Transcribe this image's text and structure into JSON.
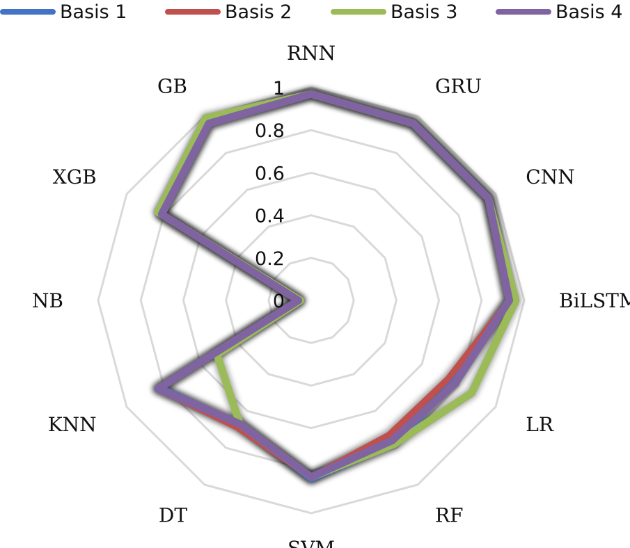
{
  "chart_data": {
    "type": "radar",
    "title": "",
    "categories": [
      "RNN",
      "GRU",
      "CNN",
      "BiLSTM",
      "LR",
      "RF",
      "SVM",
      "DT",
      "KNN",
      "NB",
      "XGB",
      "GB"
    ],
    "rlim": [
      0,
      1
    ],
    "ticks": [
      "0",
      "0.2",
      "0.4",
      "0.6",
      "0.8",
      "1"
    ],
    "grid": true,
    "legend_position": "top",
    "series": [
      {
        "name": "Basis 1",
        "color": "#4472C4",
        "values": [
          0.97,
          0.96,
          0.96,
          0.93,
          0.77,
          0.78,
          0.84,
          0.67,
          0.82,
          0.06,
          0.81,
          0.96
        ]
      },
      {
        "name": "Basis 2",
        "color": "#C0504D",
        "values": [
          0.97,
          0.96,
          0.96,
          0.93,
          0.74,
          0.73,
          0.83,
          0.69,
          0.83,
          0.06,
          0.81,
          0.96
        ]
      },
      {
        "name": "Basis 3",
        "color": "#9BBB59",
        "values": [
          0.97,
          0.96,
          0.96,
          0.96,
          0.87,
          0.78,
          0.83,
          0.67,
          0.51,
          0.05,
          0.83,
          0.99
        ]
      },
      {
        "name": "Basis 4",
        "color": "#8064A2",
        "values": [
          0.97,
          0.96,
          0.96,
          0.93,
          0.78,
          0.76,
          0.83,
          0.67,
          0.83,
          0.06,
          0.81,
          0.96
        ]
      }
    ]
  }
}
